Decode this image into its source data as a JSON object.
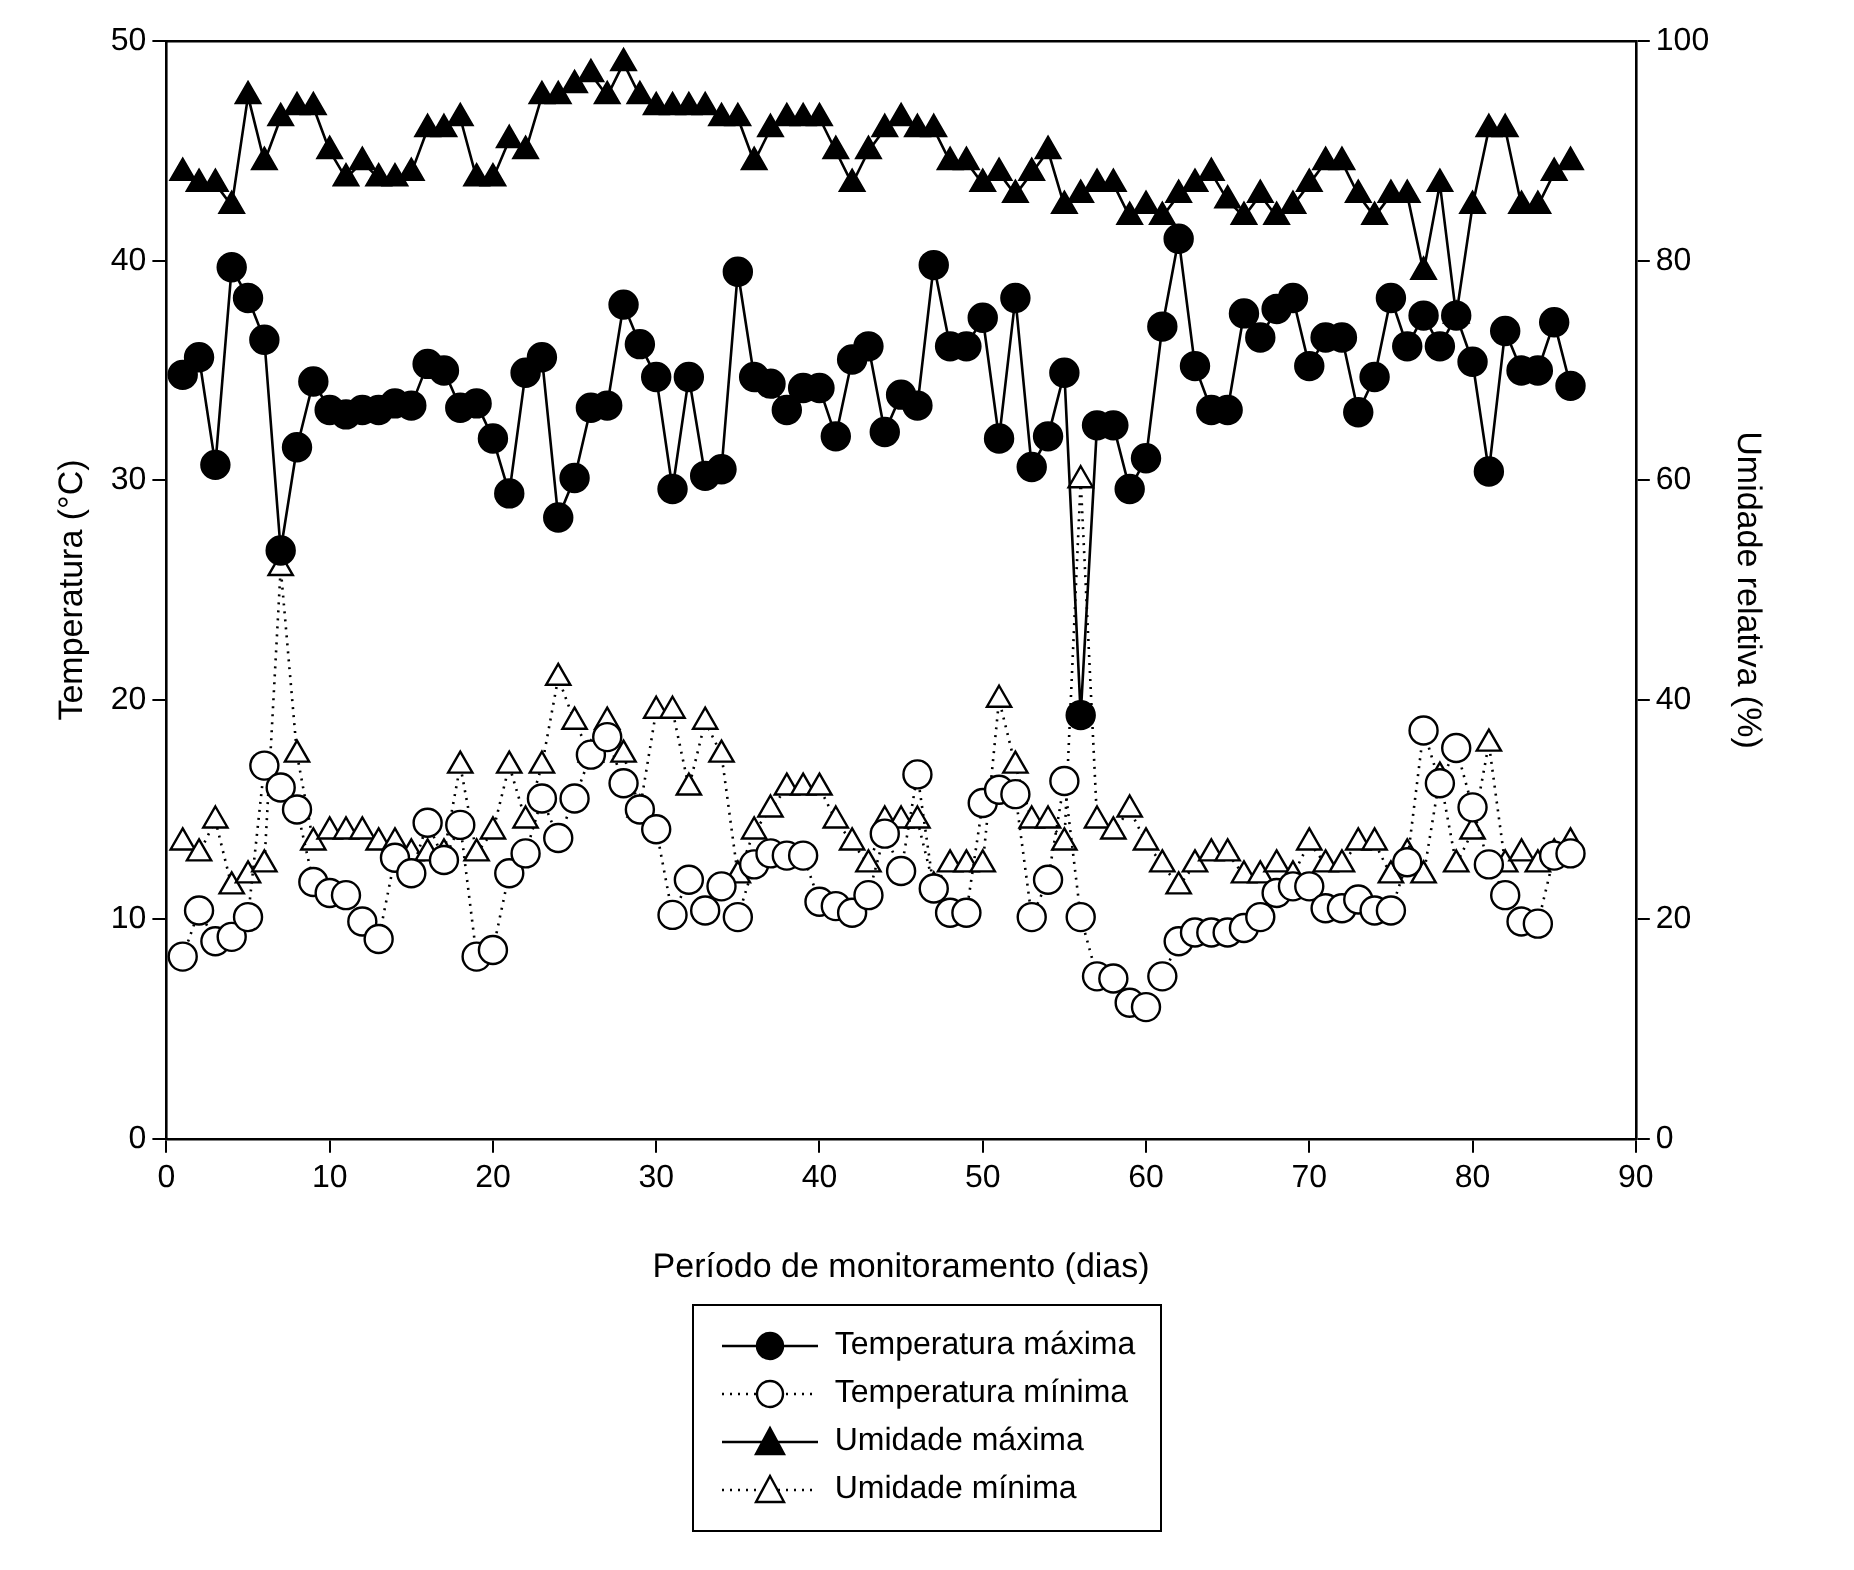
{
  "chart_data": {
    "type": "line",
    "xlabel": "Período de monitoramento (dias)",
    "ylabel": "Temperatura (°C)",
    "y2label": "Umidade relativa (%)",
    "x": [
      1,
      2,
      3,
      4,
      5,
      6,
      7,
      8,
      9,
      10,
      11,
      12,
      13,
      14,
      15,
      16,
      17,
      18,
      19,
      20,
      21,
      22,
      23,
      24,
      25,
      26,
      27,
      28,
      29,
      30,
      31,
      32,
      33,
      34,
      35,
      36,
      37,
      38,
      39,
      40,
      41,
      42,
      43,
      44,
      45,
      46,
      47,
      48,
      49,
      50,
      51,
      52,
      53,
      54,
      55,
      56,
      57,
      58,
      59,
      60,
      61,
      62,
      63,
      64,
      65,
      66,
      67,
      68,
      69,
      70,
      71,
      72,
      73,
      74,
      75,
      76,
      77,
      78,
      79,
      80,
      81,
      82,
      83,
      84,
      85,
      86
    ],
    "xlim": [
      0,
      90
    ],
    "xticks": [
      0,
      10,
      20,
      30,
      40,
      50,
      60,
      70,
      80,
      90
    ],
    "ylim": [
      0,
      50
    ],
    "yticks": [
      0,
      10,
      20,
      30,
      40,
      50
    ],
    "y2lim": [
      0,
      100
    ],
    "y2ticks": [
      0,
      20,
      40,
      60,
      80,
      100
    ],
    "grid": false,
    "legend": "bottom",
    "series": [
      {
        "name": "Temperatura máxima",
        "color": "#000000",
        "marker": "circle",
        "line_style": "solid",
        "values": [
          34.8,
          35.6,
          30.7,
          39.7,
          38.3,
          36.4,
          26.8,
          31.5,
          34.5,
          33.2,
          33.0,
          33.2,
          33.2,
          33.5,
          33.4,
          35.3,
          35.0,
          33.3,
          33.5,
          31.9,
          29.4,
          34.9,
          35.6,
          28.3,
          30.1,
          33.3,
          33.4,
          38.0,
          36.2,
          34.7,
          29.6,
          34.7,
          30.2,
          30.5,
          39.5,
          34.7,
          34.4,
          33.2,
          34.2,
          34.2,
          32.0,
          35.5,
          36.1,
          32.2,
          33.9,
          33.4,
          39.8,
          36.1,
          36.1,
          37.4,
          31.9,
          38.3,
          30.6,
          32.0,
          34.9,
          19.3,
          32.5,
          32.5,
          29.6,
          31.0,
          37.0,
          41.0,
          35.2,
          33.2,
          33.2,
          37.6,
          36.5,
          37.8,
          38.3,
          35.2,
          36.5,
          36.5,
          33.1,
          34.7,
          38.3,
          36.1,
          37.5,
          36.1,
          37.5,
          35.4,
          30.4,
          36.8,
          35.0,
          35.0,
          37.2,
          34.3
        ]
      },
      {
        "name": "Temperatura mínima",
        "color": "#000000",
        "marker": "circle",
        "line_style": "dotted",
        "values": [
          8.3,
          10.4,
          9.0,
          9.2,
          10.1,
          17.0,
          16.0,
          15.0,
          11.7,
          11.2,
          11.1,
          9.9,
          9.1,
          12.8,
          12.1,
          14.4,
          12.7,
          14.3,
          8.3,
          8.6,
          12.1,
          13.0,
          15.5,
          13.7,
          15.5,
          17.5,
          18.3,
          16.2,
          15.0,
          14.1,
          10.2,
          11.8,
          10.4,
          11.5,
          10.1,
          12.5,
          13.0,
          12.9,
          12.9,
          10.8,
          10.6,
          10.3,
          11.1,
          13.9,
          12.2,
          16.6,
          11.4,
          10.3,
          10.3,
          15.3,
          15.9,
          15.7,
          10.1,
          11.8,
          16.3,
          10.1,
          7.4,
          7.3,
          6.2,
          6.0,
          7.4,
          9.0,
          9.4,
          9.4,
          9.4,
          9.6,
          10.1,
          11.2,
          11.5,
          11.5,
          10.5,
          10.5,
          10.9,
          10.4,
          10.4,
          12.6,
          18.6,
          16.2,
          17.8,
          15.1,
          12.5,
          11.1,
          9.9,
          9.8,
          12.9,
          13.0
        ]
      },
      {
        "name": "Umidade máxima",
        "color": "#000000",
        "marker": "triangle",
        "line_style": "solid",
        "axis": "y2",
        "values": [
          88,
          87,
          87,
          85,
          95,
          89,
          93,
          94,
          94,
          90,
          87.5,
          89,
          87.5,
          87.5,
          88,
          92,
          92,
          93,
          87.5,
          87.5,
          91,
          90,
          95,
          95,
          96,
          97,
          95,
          98,
          95,
          94,
          94,
          94,
          94,
          93,
          93,
          89,
          92,
          93,
          93,
          93,
          90,
          87,
          90,
          92,
          93,
          92,
          92,
          89,
          89,
          87,
          88,
          86,
          88,
          90,
          85,
          86,
          87,
          87,
          84,
          85,
          84,
          86,
          87,
          88,
          85.5,
          84,
          86,
          84,
          85,
          87,
          89,
          89,
          86,
          84,
          86,
          86,
          79,
          87,
          75,
          85,
          92,
          92,
          85,
          85,
          88,
          89
        ]
      },
      {
        "name": "Umidade mínima",
        "color": "#000000",
        "marker": "triangle",
        "line_style": "dotted",
        "axis": "y2",
        "values": [
          27,
          26,
          29,
          23,
          24,
          25,
          52,
          35,
          27,
          28,
          28,
          28,
          27,
          27,
          26,
          26,
          26,
          34,
          26,
          28,
          34,
          29,
          34,
          42,
          38,
          35,
          38,
          35,
          30,
          39,
          39,
          32,
          38,
          35,
          24,
          28,
          30,
          32,
          32,
          32,
          29,
          27,
          25,
          29,
          29,
          29,
          23,
          25,
          25,
          25,
          40,
          34,
          29,
          29,
          27,
          60,
          29,
          28,
          30,
          27,
          25,
          23,
          25,
          26,
          26,
          24,
          24,
          25,
          24,
          27,
          25,
          25,
          27,
          27,
          24,
          26,
          24,
          33,
          25,
          28,
          36,
          25,
          26,
          25,
          26,
          27
        ]
      }
    ]
  }
}
